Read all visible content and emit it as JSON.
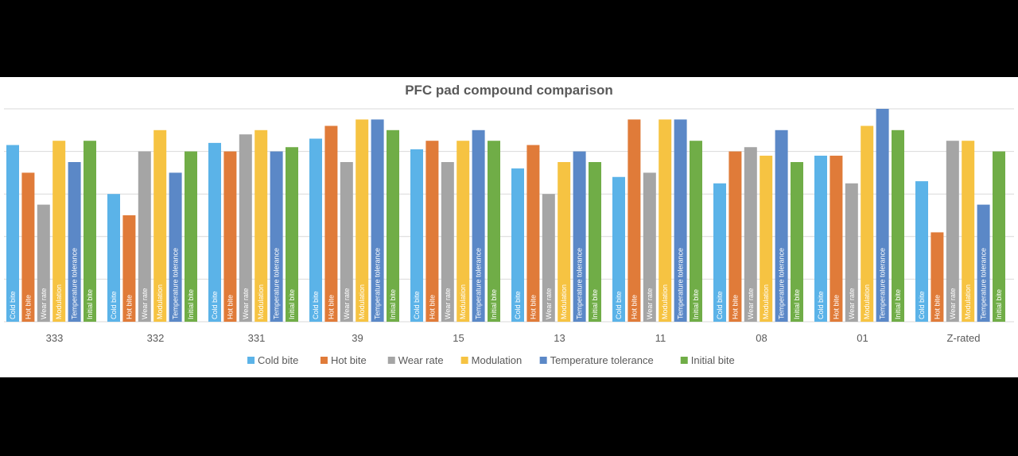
{
  "chart_data": {
    "type": "bar",
    "title": "PFC pad compound comparison",
    "categories": [
      "333",
      "332",
      "331",
      "39",
      "15",
      "13",
      "11",
      "08",
      "01",
      "Z-rated"
    ],
    "ylim": [
      0,
      10
    ],
    "grid": true,
    "legend_position": "bottom",
    "series": [
      {
        "name": "Cold bite",
        "color": "#5bb3e8",
        "values": [
          8.3,
          6.0,
          8.4,
          8.6,
          8.1,
          7.2,
          6.8,
          6.5,
          7.8,
          6.6
        ]
      },
      {
        "name": "Hot bite",
        "color": "#e07b39",
        "values": [
          7.0,
          5.0,
          8.0,
          9.2,
          8.5,
          8.3,
          9.5,
          8.0,
          7.8,
          4.2
        ]
      },
      {
        "name": "Wear rate",
        "color": "#a5a5a5",
        "values": [
          5.5,
          8.0,
          8.8,
          7.5,
          7.5,
          6.0,
          7.0,
          8.2,
          6.5,
          8.5
        ]
      },
      {
        "name": "Modulation",
        "color": "#f6c342",
        "values": [
          8.5,
          9.0,
          9.0,
          9.5,
          8.5,
          7.5,
          9.5,
          7.8,
          9.2,
          8.5
        ]
      },
      {
        "name": "Temperature tolerance",
        "color": "#5b88c7",
        "values": [
          7.5,
          7.0,
          8.0,
          9.5,
          9.0,
          8.0,
          9.5,
          9.0,
          10.0,
          5.5
        ]
      },
      {
        "name": "Initial bite",
        "color": "#70ad47",
        "values": [
          8.5,
          8.0,
          8.2,
          9.0,
          8.5,
          7.5,
          8.5,
          7.5,
          9.0,
          8.0
        ]
      }
    ]
  }
}
